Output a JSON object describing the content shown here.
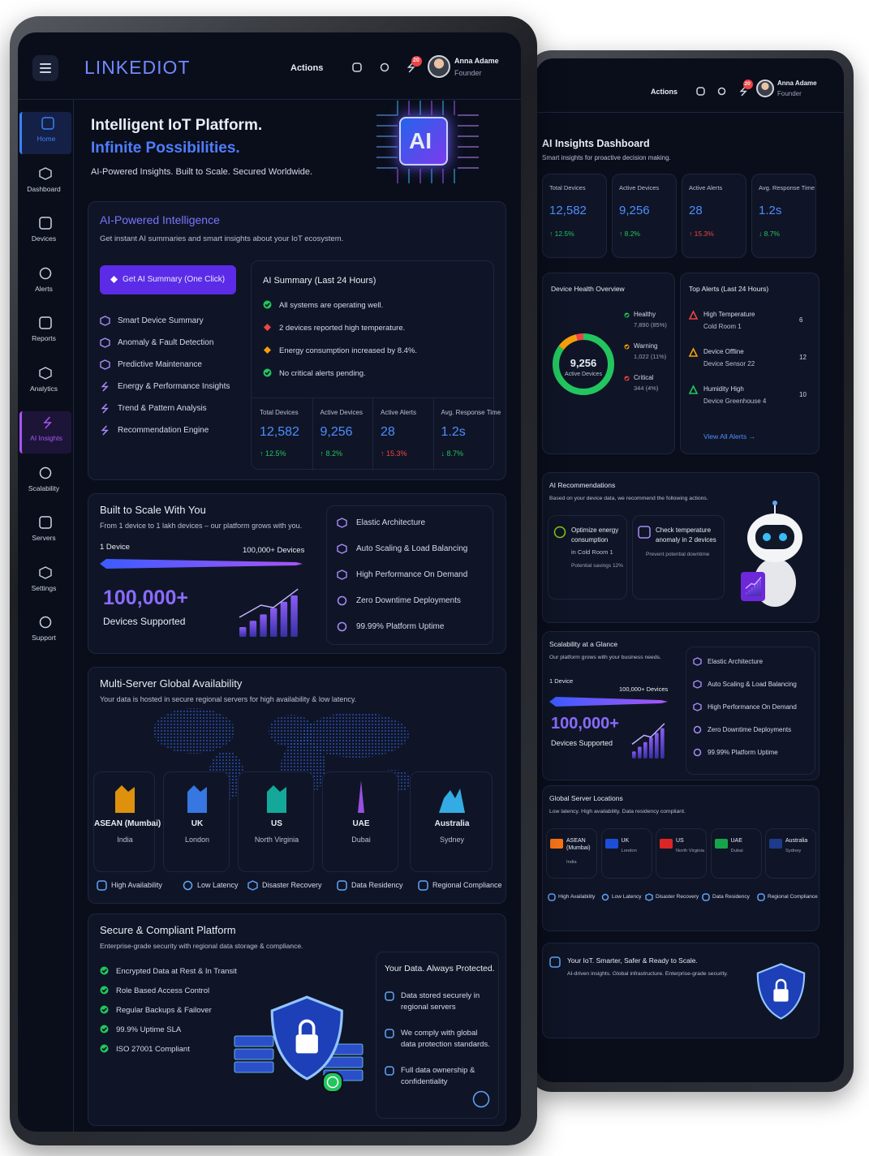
{
  "front": {
    "header": {
      "brand": "LINKEDIOT",
      "actions": "Actions",
      "notifications": "20",
      "user_name": "Anna Adame",
      "user_role": "Founder"
    },
    "sidebar": [
      "Home",
      "Dashboard",
      "Devices",
      "Alerts",
      "Reports",
      "Analytics",
      "AI Insights",
      "Scalability",
      "Servers",
      "Settings",
      "Support"
    ],
    "hero": {
      "title": "Intelligent IoT Platform.",
      "highlight": "Infinite Possibilities.",
      "subtitle": "AI-Powered Insights. Built to Scale. Secured Worldwide.",
      "badge": "AI"
    },
    "ai_card": {
      "title": "AI-Powered Intelligence",
      "subtitle": "Get instant AI summaries and smart insights about your IoT ecosystem.",
      "button": "Get AI Summary (One Click)",
      "features": [
        "Smart Device Summary",
        "Anomaly & Fault Detection",
        "Predictive Maintenance",
        "Energy & Performance Insights",
        "Trend & Pattern Analysis",
        "Recommendation Engine"
      ],
      "summary": {
        "title": "AI Summary (Last 24 Hours)",
        "items": [
          {
            "text": "All systems are operating well.",
            "color": "#22c55e"
          },
          {
            "text": "2 devices reported high temperature.",
            "color": "#ef4444"
          },
          {
            "text": "Energy consumption increased by 8.4%.",
            "color": "#f59e0b"
          },
          {
            "text": "No critical alerts pending.",
            "color": "#22c55e"
          }
        ]
      },
      "stats": [
        {
          "label": "Total Devices",
          "value": "12,582",
          "change": "↑ 12.5%",
          "color": "#22c55e"
        },
        {
          "label": "Active Devices",
          "value": "9,256",
          "change": "↑ 8.2%",
          "color": "#22c55e"
        },
        {
          "label": "Active Alerts",
          "value": "28",
          "change": "↑ 15.3%",
          "color": "#ef4444"
        },
        {
          "label": "Avg. Response Time",
          "value": "1.2s",
          "change": "↓ 8.7%",
          "color": "#22c55e"
        }
      ]
    },
    "scale_card": {
      "title": "Built to Scale With You",
      "subtitle": "From 1 device to 1 lakh devices – our platform grows with you.",
      "range_start": "1 Device",
      "range_end": "100,000+ Devices",
      "big_number": "100,000+",
      "big_label": "Devices Supported",
      "features": [
        "Elastic Architecture",
        "Auto Scaling & Load Balancing",
        "High Performance On Demand",
        "Zero Downtime Deployments",
        "99.99% Platform Uptime"
      ]
    },
    "servers_card": {
      "title": "Multi-Server Global Availability",
      "subtitle": "Your data is hosted in secure regional servers for high availability & low latency.",
      "locations": [
        {
          "name": "ASEAN (Mumbai)",
          "place": "India",
          "color": "#f59e0b"
        },
        {
          "name": "UK",
          "place": "London",
          "color": "#3b82f6"
        },
        {
          "name": "US",
          "place": "North Virginia",
          "color": "#14b8a6"
        },
        {
          "name": "UAE",
          "place": "Dubai",
          "color": "#a855f7"
        },
        {
          "name": "Australia",
          "place": "Sydney",
          "color": "#38bdf8"
        }
      ],
      "tags": [
        "High Availability",
        "Low Latency",
        "Disaster Recovery",
        "Data Residency",
        "Regional Compliance"
      ]
    },
    "security_card": {
      "title": "Secure & Compliant Platform",
      "subtitle": "Enterprise-grade security with regional data storage & compliance.",
      "items": [
        "Encrypted Data at Rest & In Transit",
        "Role Based Access Control",
        "Regular Backups & Failover",
        "99.9% Uptime SLA",
        "ISO 27001 Compliant"
      ],
      "box_title": "Your Data. Always Protected.",
      "box_items": [
        "Data stored securely in regional servers",
        "We comply with global data protection standards.",
        "Full data ownership & confidentiality"
      ]
    }
  },
  "back": {
    "header": {
      "actions": "Actions",
      "notifications": "20",
      "user_name": "Anna Adame",
      "user_role": "Founder"
    },
    "title": "AI Insights Dashboard",
    "subtitle": "Smart insights for proactive decision making.",
    "stats": [
      {
        "label": "Total Devices",
        "value": "12,582",
        "change": "↑ 12.5%",
        "color": "#22c55e"
      },
      {
        "label": "Active Devices",
        "value": "9,256",
        "change": "↑ 8.2%",
        "color": "#22c55e"
      },
      {
        "label": "Active Alerts",
        "value": "28",
        "change": "↑ 15.3%",
        "color": "#ef4444"
      },
      {
        "label": "Avg. Response Time",
        "value": "1.2s",
        "change": "↓ 8.7%",
        "color": "#22c55e"
      }
    ],
    "health": {
      "title": "Device Health Overview",
      "center_value": "9,256",
      "center_label": "Active Devices",
      "segments": [
        {
          "name": "Healthy",
          "value": 85,
          "label": "7,890 (85%)",
          "color": "#22c55e"
        },
        {
          "name": "Warning",
          "value": 11,
          "label": "1,022 (11%)",
          "color": "#f59e0b"
        },
        {
          "name": "Critical",
          "value": 4,
          "label": "344 (4%)",
          "color": "#ef4444"
        }
      ]
    },
    "alerts": {
      "title": "Top Alerts (Last 24 Hours)",
      "link": "View All Alerts →",
      "items": [
        {
          "name": "High Temperature",
          "device": "Cold Room 1",
          "count": "6",
          "color": "#ef4444"
        },
        {
          "name": "Device Offline",
          "device": "Device Sensor 22",
          "count": "12",
          "color": "#f59e0b"
        },
        {
          "name": "Humidity High",
          "device": "Device Greenhouse 4",
          "count": "10",
          "color": "#22c55e"
        }
      ]
    },
    "recommendations": {
      "title": "AI Recommendations",
      "subtitle": "Based on your device data, we recommend the following actions.",
      "cards": [
        {
          "title": "Optimize energy consumption",
          "detail": "in Cold Room 1",
          "note": "Potential savings 12%",
          "color": "#84cc16"
        },
        {
          "title": "Check temperature anomaly in 2 devices",
          "note": "Prevent potential downtime",
          "color": "#a78bfa"
        }
      ]
    },
    "scalability": {
      "title": "Scalability at a Glance",
      "subtitle": "Our platform grows with your business needs.",
      "range_start": "1 Device",
      "range_end": "100,000+ Devices",
      "big_number": "100,000+",
      "big_label": "Devices Supported",
      "features": [
        "Elastic Architecture",
        "Auto Scaling & Load Balancing",
        "High Performance On Demand",
        "Zero Downtime Deployments",
        "99.99% Platform Uptime"
      ]
    },
    "servers": {
      "title": "Global Server Locations",
      "subtitle": "Low latency. High availability. Data residency compliant.",
      "locations": [
        {
          "name": "ASEAN (Mumbai)",
          "place": "India",
          "color": "#f97316"
        },
        {
          "name": "UK",
          "place": "London",
          "color": "#1d4ed8"
        },
        {
          "name": "US",
          "place": "North Virginia",
          "color": "#dc2626"
        },
        {
          "name": "UAE",
          "place": "Dubai",
          "color": "#16a34a"
        },
        {
          "name": "Australia",
          "place": "Sydney",
          "color": "#1e3a8a"
        }
      ],
      "tags": [
        "High Availability",
        "Low Latency",
        "Disaster Recovery",
        "Data Residency",
        "Regional Compliance"
      ]
    },
    "footer": {
      "title": "Your IoT. Smarter, Safer & Ready to Scale.",
      "subtitle": "AI-driven insights. Global infrastructure. Enterprise-grade security."
    }
  }
}
